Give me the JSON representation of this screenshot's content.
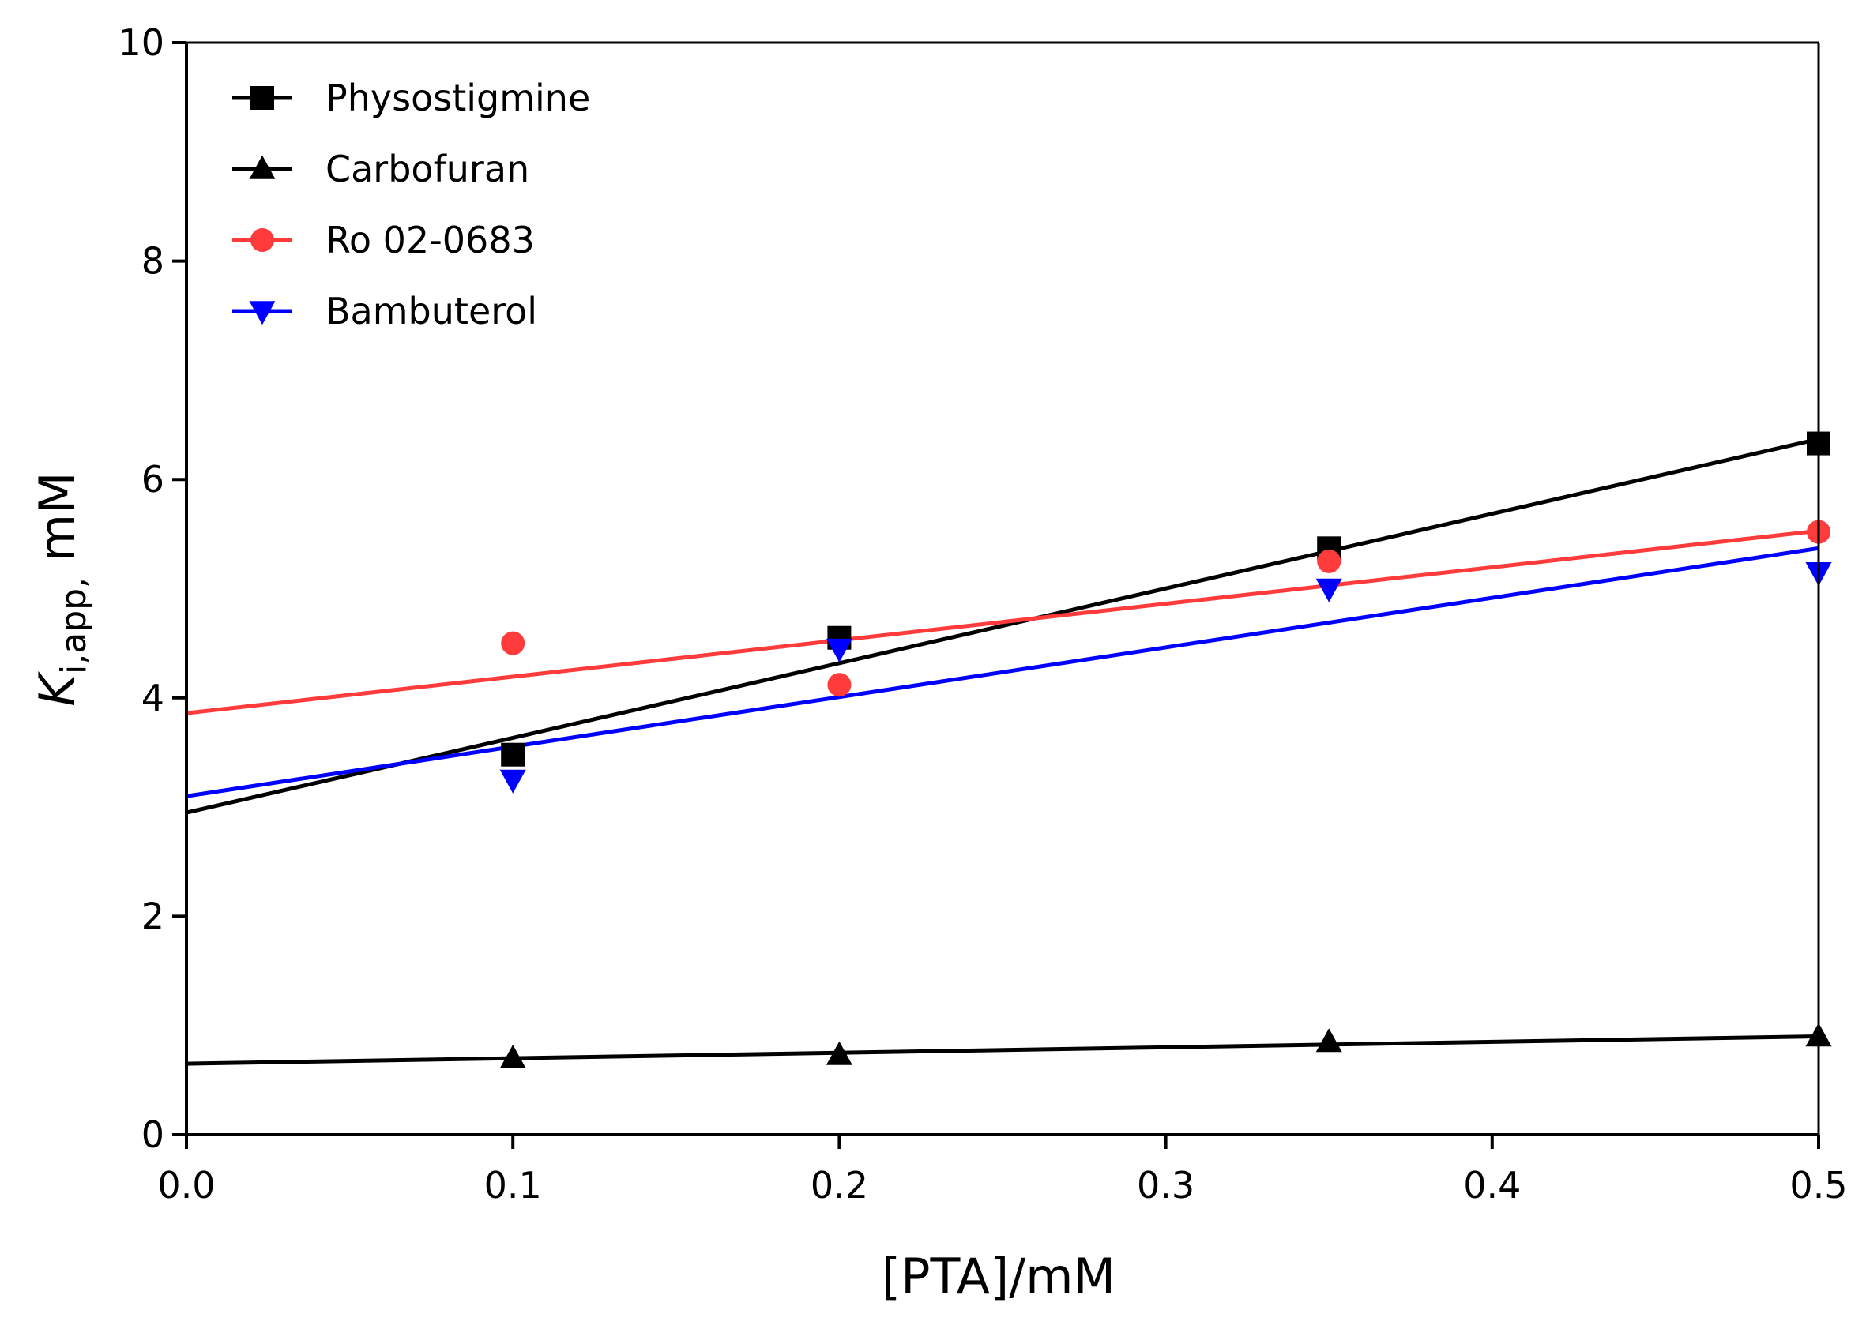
{
  "chart_data": {
    "type": "scatter",
    "title": "",
    "xlabel": "[PTA]/mM",
    "ylabel_main": "K",
    "ylabel_sub": "i,app,",
    "ylabel_unit": " mM",
    "xlim": [
      0.0,
      0.5
    ],
    "ylim": [
      0,
      10
    ],
    "xticks": [
      {
        "value": 0.0,
        "label": "0.0"
      },
      {
        "value": 0.1,
        "label": "0.1"
      },
      {
        "value": 0.2,
        "label": "0.2"
      },
      {
        "value": 0.3,
        "label": "0.3"
      },
      {
        "value": 0.4,
        "label": "0.4"
      },
      {
        "value": 0.5,
        "label": "0.5"
      }
    ],
    "yticks": [
      {
        "value": 0,
        "label": "0"
      },
      {
        "value": 2,
        "label": "2"
      },
      {
        "value": 4,
        "label": "4"
      },
      {
        "value": 6,
        "label": "6"
      },
      {
        "value": 8,
        "label": "8"
      },
      {
        "value": 10,
        "label": "10"
      }
    ],
    "grid": false,
    "legend_position": "top-left",
    "x": [
      0.1,
      0.2,
      0.35,
      0.5
    ],
    "series": [
      {
        "name": "Physostigmine",
        "marker": "square",
        "color": "#000000",
        "values": [
          3.48,
          4.55,
          5.37,
          6.33
        ],
        "fit": {
          "intercept": 2.95,
          "slope": 6.84
        }
      },
      {
        "name": "Carbofuran",
        "marker": "triangle-up",
        "color": "#000000",
        "values": [
          0.7,
          0.73,
          0.85,
          0.9
        ],
        "fit": {
          "intercept": 0.65,
          "slope": 0.5
        }
      },
      {
        "name": "Ro 02-0683",
        "marker": "circle",
        "color": "#ff3b3b",
        "values": [
          4.5,
          4.12,
          5.25,
          5.52
        ],
        "fit": {
          "intercept": 3.86,
          "slope": 3.34
        }
      },
      {
        "name": "Bambuterol",
        "marker": "triangle-down",
        "color": "#0000ff",
        "values": [
          3.25,
          4.45,
          5.0,
          5.15
        ],
        "fit": {
          "intercept": 3.1,
          "slope": 4.54
        }
      }
    ]
  }
}
